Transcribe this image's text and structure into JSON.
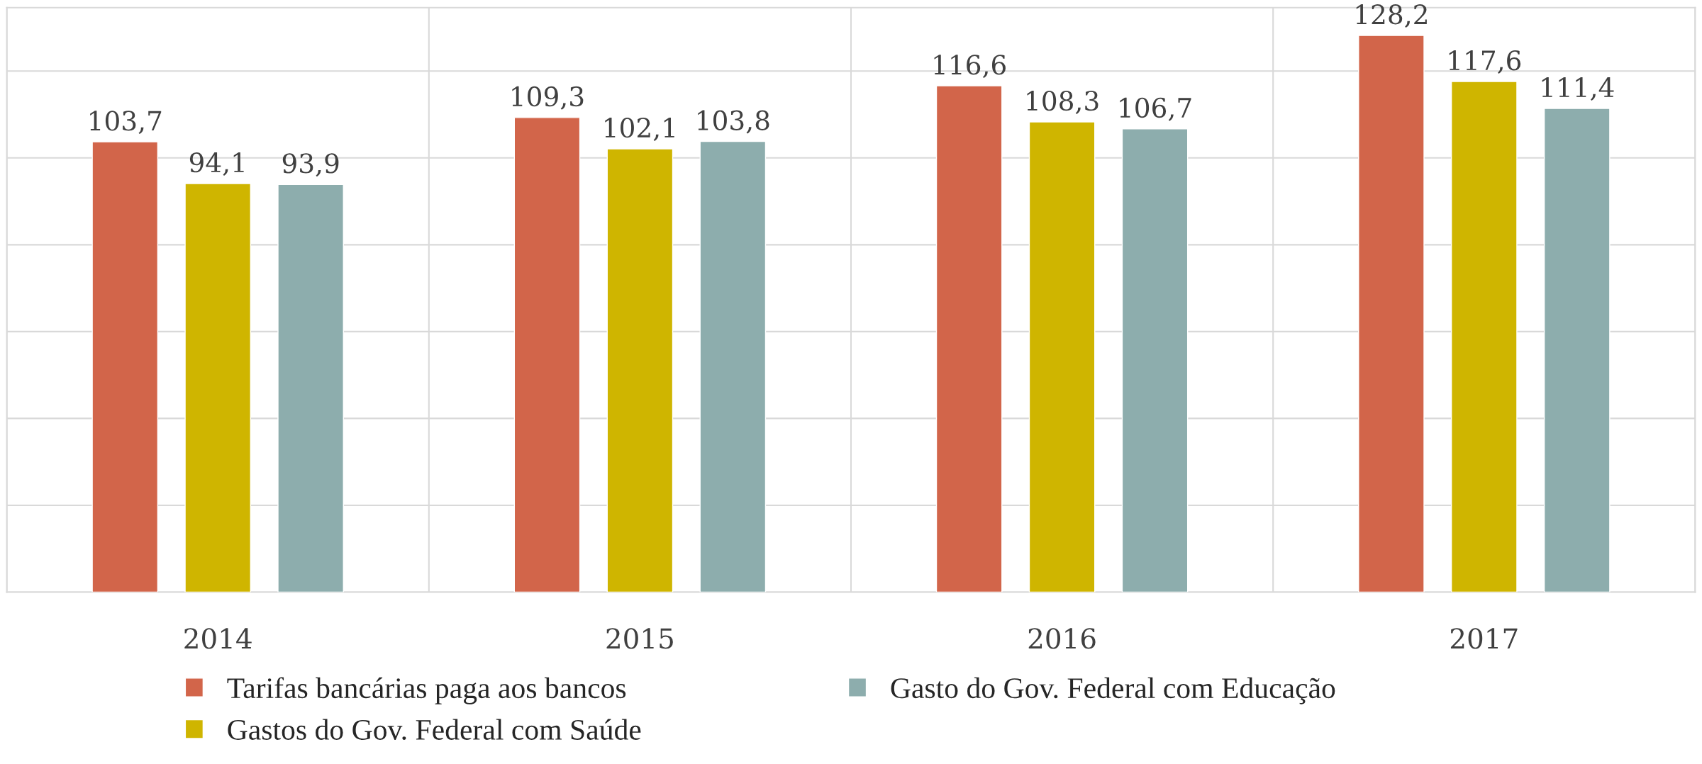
{
  "chart_data": {
    "type": "bar",
    "categories": [
      "2014",
      "2015",
      "2016",
      "2017"
    ],
    "series": [
      {
        "name": "Tarifas bancárias paga aos bancos",
        "color": "#d2654a",
        "values": [
          103.7,
          109.3,
          116.6,
          128.2
        ],
        "value_labels": [
          "103,7",
          "109,3",
          "116,6",
          "128,2"
        ]
      },
      {
        "name": "Gastos do Gov. Federal com Saúde",
        "color": "#cfb500",
        "values": [
          94.1,
          102.1,
          108.3,
          117.6
        ],
        "value_labels": [
          "94,1",
          "102,1",
          "108,3",
          "117,6"
        ]
      },
      {
        "name": "Gasto do Gov. Federal com Educação",
        "color": "#8dadad",
        "values": [
          93.9,
          103.8,
          106.7,
          111.4
        ],
        "value_labels": [
          "93,9",
          "103,8",
          "106,7",
          "111,4"
        ]
      }
    ],
    "tick_labels": "x",
    "grid": true,
    "legend": "bottom"
  }
}
